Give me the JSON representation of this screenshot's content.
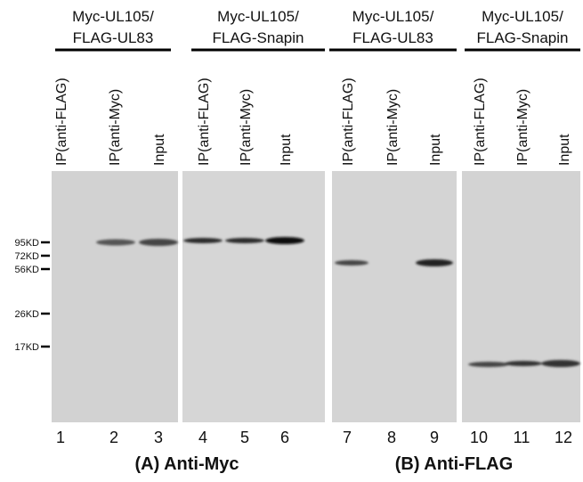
{
  "groups": [
    {
      "line1": "Myc-UL105/",
      "line2": "FLAG-UL83",
      "lanes": [
        {
          "label": "IP(anti-FLAG)",
          "number": "1"
        },
        {
          "label": "IP(anti-Myc)",
          "number": "2"
        },
        {
          "label": "Input",
          "number": "3"
        }
      ]
    },
    {
      "line1": "Myc-UL105/",
      "line2": "FLAG-Snapin",
      "lanes": [
        {
          "label": "IP(anti-FLAG)",
          "number": "4"
        },
        {
          "label": "IP(anti-Myc)",
          "number": "5"
        },
        {
          "label": "Input",
          "number": "6"
        }
      ]
    },
    {
      "line1": "Myc-UL105/",
      "line2": "FLAG-UL83",
      "lanes": [
        {
          "label": "IP(anti-FLAG)",
          "number": "7"
        },
        {
          "label": "IP(anti-Myc)",
          "number": "8"
        },
        {
          "label": "Input",
          "number": "9"
        }
      ]
    },
    {
      "line1": "Myc-UL105/",
      "line2": "FLAG-Snapin",
      "lanes": [
        {
          "label": "IP(anti-FLAG)",
          "number": "10"
        },
        {
          "label": "IP(anti-Myc)",
          "number": "11"
        },
        {
          "label": "Input",
          "number": "12"
        }
      ]
    }
  ],
  "markers": [
    "95KD",
    "72KD",
    "56KD",
    "26KD",
    "17KD"
  ],
  "panels": [
    "(A) Anti-Myc",
    "(B) Anti-FLAG"
  ]
}
